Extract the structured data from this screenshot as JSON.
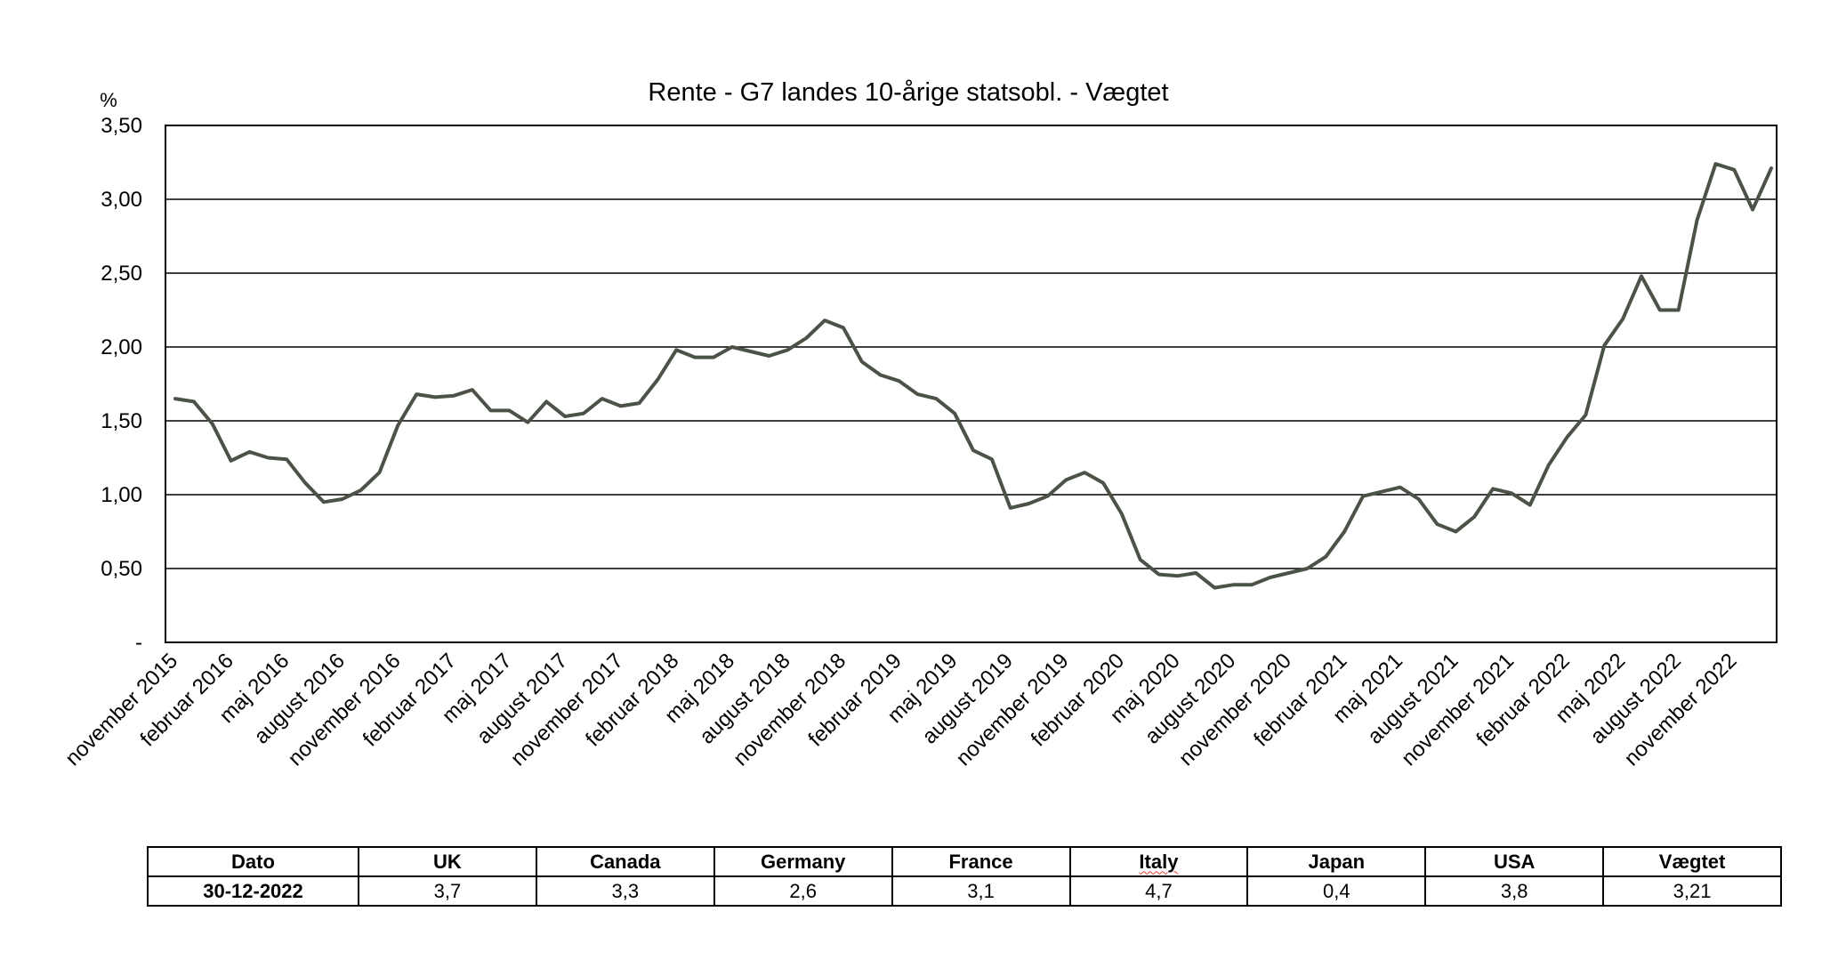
{
  "chart_data": {
    "type": "line",
    "title": "Rente - G7 landes 10-årige statsobl. - Vægtet",
    "ylabel": "%",
    "xlabel": "",
    "ylim": [
      0,
      3.5
    ],
    "yticks": [
      0,
      0.5,
      1.0,
      1.5,
      2.0,
      2.5,
      3.0,
      3.5
    ],
    "ytick_labels": [
      "-",
      "0,50",
      "1,00",
      "1,50",
      "2,00",
      "2,50",
      "3,00",
      "3,50"
    ],
    "grid": true,
    "line_color": "#4b5247",
    "xtick_labels": [
      "november 2015",
      "februar 2016",
      "maj 2016",
      "august 2016",
      "november 2016",
      "februar 2017",
      "maj 2017",
      "august 2017",
      "november 2017",
      "februar 2018",
      "maj 2018",
      "august 2018",
      "november 2018",
      "februar 2019",
      "maj 2019",
      "august 2019",
      "november 2019",
      "februar 2020",
      "maj 2020",
      "august 2020",
      "november 2020",
      "februar 2021",
      "maj 2021",
      "august 2021",
      "november 2021",
      "februar 2022",
      "maj 2022",
      "august 2022",
      "november 2022"
    ],
    "xtick_month_index": [
      0,
      3,
      6,
      9,
      12,
      15,
      18,
      21,
      24,
      27,
      30,
      33,
      36,
      39,
      42,
      45,
      48,
      51,
      54,
      57,
      60,
      63,
      66,
      69,
      72,
      75,
      78,
      81,
      84
    ],
    "series": [
      {
        "name": "Vægtet",
        "values": [
          1.65,
          1.63,
          1.48,
          1.23,
          1.29,
          1.25,
          1.24,
          1.08,
          0.95,
          0.97,
          1.03,
          1.15,
          1.47,
          1.68,
          1.66,
          1.67,
          1.71,
          1.57,
          1.57,
          1.49,
          1.63,
          1.53,
          1.55,
          1.65,
          1.6,
          1.62,
          1.78,
          1.98,
          1.93,
          1.93,
          2.0,
          1.97,
          1.94,
          1.98,
          2.06,
          2.18,
          2.13,
          1.9,
          1.81,
          1.77,
          1.68,
          1.65,
          1.55,
          1.3,
          1.24,
          0.91,
          0.94,
          0.99,
          1.1,
          1.15,
          1.08,
          0.87,
          0.56,
          0.46,
          0.45,
          0.47,
          0.37,
          0.39,
          0.39,
          0.44,
          0.47,
          0.5,
          0.58,
          0.75,
          0.99,
          1.02,
          1.05,
          0.97,
          0.8,
          0.75,
          0.85,
          1.04,
          1.01,
          0.93,
          1.2,
          1.39,
          1.54,
          2.01,
          2.19,
          2.48,
          2.25,
          2.25,
          2.86,
          3.24,
          3.2,
          2.93,
          3.21
        ]
      }
    ]
  },
  "table": {
    "headers": [
      "Dato",
      "UK",
      "Canada",
      "Germany",
      "France",
      "Italy",
      "Japan",
      "USA",
      "Vægtet"
    ],
    "row": [
      "30-12-2022",
      "3,7",
      "3,3",
      "2,6",
      "3,1",
      "4,7",
      "0,4",
      "3,8",
      "3,21"
    ]
  }
}
